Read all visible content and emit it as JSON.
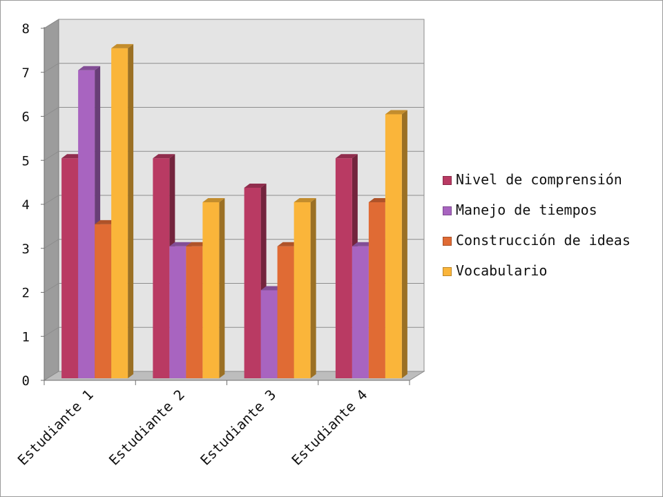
{
  "chart_data": {
    "type": "bar",
    "categories": [
      "Estudiante 1",
      "Estudiante 2",
      "Estudiante 3",
      "Estudiante 4"
    ],
    "series": [
      {
        "name": "Nivel de comprensión",
        "values": [
          5,
          5,
          4.33,
          5
        ],
        "color": "#B93A63"
      },
      {
        "name": "Manejo de tiempos",
        "values": [
          7,
          3,
          2,
          3
        ],
        "color": "#A864C0"
      },
      {
        "name": "Construcción de ideas",
        "values": [
          3.5,
          3,
          3,
          4
        ],
        "color": "#E06B34"
      },
      {
        "name": "Vocabulario",
        "values": [
          7.5,
          4,
          4,
          6
        ],
        "color": "#FAB53A"
      }
    ],
    "yticks": [
      "0",
      "1",
      "2",
      "3",
      "4",
      "5",
      "6",
      "7",
      "8"
    ],
    "ylim": [
      0,
      8
    ],
    "grid": true,
    "three_d": true,
    "legend_position": "right",
    "wall_color": "#E4E4E4",
    "side_wall_color": "#9C9C9C",
    "floor_color": "#BDBDBD"
  }
}
